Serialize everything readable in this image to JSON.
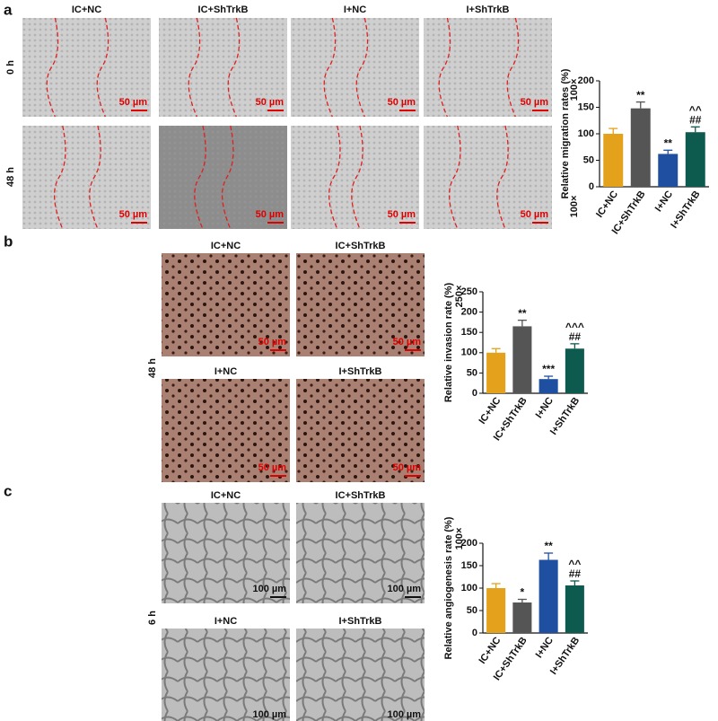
{
  "panels": [
    {
      "letter": "a",
      "columns": [
        "IC+NC",
        "IC+ShTrkB",
        "I+NC",
        "I+ShTrkB"
      ],
      "rows": [
        "0 h",
        "48 h"
      ],
      "scale_bar": "50 µm"
    },
    {
      "letter": "b",
      "columns": [
        "IC+NC",
        "IC+ShTrkB",
        "I+NC",
        "I+ShTrkB"
      ],
      "rows": [
        "48 h"
      ],
      "scale_bar": "50 µm"
    },
    {
      "letter": "c",
      "columns": [
        "IC+NC",
        "IC+ShTrkB",
        "I+NC",
        "I+ShTrkB"
      ],
      "rows": [
        "6 h"
      ],
      "scale_bar": "100 µm"
    }
  ],
  "chart_data": [
    {
      "type": "bar",
      "ylabel": "Relative migration rates (%)",
      "magnifications": [
        "100×",
        "100×"
      ],
      "categories": [
        "IC+NC",
        "IC+ShTrkB",
        "I+NC",
        "I+ShTrkB"
      ],
      "values": [
        100,
        148,
        62,
        103
      ],
      "errors": [
        10,
        12,
        7,
        10
      ],
      "colors": [
        "#e4a11b",
        "#555555",
        "#1f4fa0",
        "#0d5a4e"
      ],
      "annotations": [
        [],
        [
          "**"
        ],
        [
          "**"
        ],
        [
          "^^",
          "##"
        ]
      ],
      "ylim": [
        0,
        200
      ],
      "yticks": [
        0,
        50,
        100,
        150,
        200
      ]
    },
    {
      "type": "bar",
      "ylabel": "Relative invasion rate (%)",
      "magnifications": [
        "250×"
      ],
      "categories": [
        "IC+NC",
        "IC+ShTrkB",
        "I+NC",
        "I+ShTrkB"
      ],
      "values": [
        100,
        165,
        35,
        110
      ],
      "errors": [
        10,
        15,
        7,
        12
      ],
      "colors": [
        "#e4a11b",
        "#555555",
        "#1f4fa0",
        "#0d5a4e"
      ],
      "annotations": [
        [],
        [
          "**"
        ],
        [
          "***"
        ],
        [
          "^^^",
          "##"
        ]
      ],
      "ylim": [
        0,
        250
      ],
      "yticks": [
        0,
        50,
        100,
        150,
        200,
        250
      ]
    },
    {
      "type": "bar",
      "ylabel": "Relative angiogenesis rate (%)",
      "magnifications": [
        "100×"
      ],
      "categories": [
        "IC+NC",
        "IC+ShTrkB",
        "I+NC",
        "I+ShTrkB"
      ],
      "values": [
        100,
        68,
        163,
        106
      ],
      "errors": [
        10,
        7,
        15,
        10
      ],
      "colors": [
        "#e4a11b",
        "#555555",
        "#1f4fa0",
        "#0d5a4e"
      ],
      "annotations": [
        [],
        [
          "*"
        ],
        [
          "**"
        ],
        [
          "^^",
          "##"
        ]
      ],
      "ylim": [
        0,
        200
      ],
      "yticks": [
        0,
        50,
        100,
        150,
        200
      ]
    }
  ]
}
